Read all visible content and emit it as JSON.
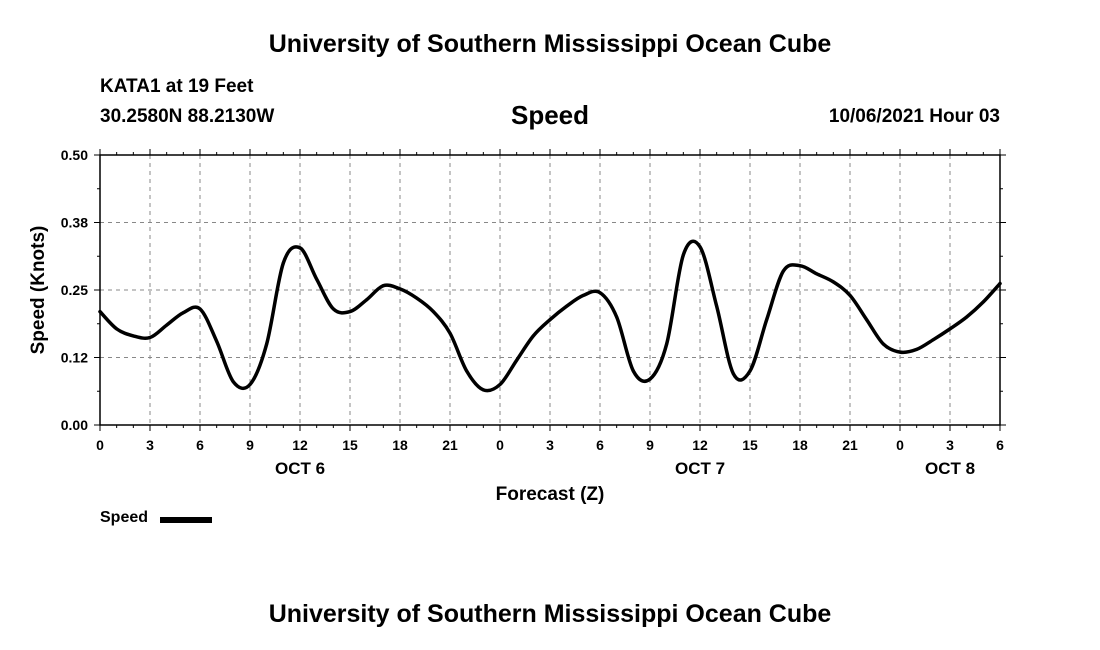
{
  "header": {
    "title": "University of Southern Mississippi Ocean Cube",
    "station": "KATA1 at 19 Feet",
    "coords": "30.2580N  88.2130W",
    "variable": "Speed",
    "datetime": "10/06/2021 Hour 03"
  },
  "footer": {
    "title": "University of Southern Mississippi Ocean Cube"
  },
  "legend": {
    "label": "Speed",
    "color": "#000000"
  },
  "chart_data": {
    "type": "line",
    "title": "Speed",
    "xlabel": "Forecast (Z)",
    "ylabel": "Speed (Knots)",
    "ylim": [
      0,
      0.5
    ],
    "xlim": [
      0,
      54
    ],
    "grid": true,
    "legend_position": "bottom-left",
    "y_ticks": [
      0.0,
      0.125,
      0.25,
      0.375,
      0.5
    ],
    "y_tick_labels": [
      "0.00",
      "0.12",
      "0.25",
      "0.38",
      "0.50"
    ],
    "x_ticks": [
      0,
      3,
      6,
      9,
      12,
      15,
      18,
      21,
      24,
      27,
      30,
      33,
      36,
      39,
      42,
      45,
      48,
      51,
      54
    ],
    "x_tick_labels": [
      "0",
      "3",
      "6",
      "9",
      "12",
      "15",
      "18",
      "21",
      "0",
      "3",
      "6",
      "9",
      "12",
      "15",
      "18",
      "21",
      "0",
      "3",
      "6"
    ],
    "day_labels": [
      {
        "x": 12,
        "label": "OCT 6"
      },
      {
        "x": 36,
        "label": "OCT 7"
      },
      {
        "x": 51,
        "label": "OCT 8"
      }
    ],
    "series": [
      {
        "name": "Speed",
        "color": "#000000",
        "x": [
          0,
          1,
          2,
          3,
          4,
          5,
          6,
          7,
          8,
          9,
          10,
          11,
          12,
          13,
          14,
          15,
          16,
          17,
          18,
          19,
          20,
          21,
          22,
          23,
          24,
          25,
          26,
          27,
          28,
          29,
          30,
          31,
          32,
          33,
          34,
          35,
          36,
          37,
          38,
          39,
          40,
          41,
          42,
          43,
          44,
          45,
          46,
          47,
          48,
          49,
          50,
          51,
          52,
          53,
          54
        ],
        "values": [
          0.21,
          0.178,
          0.165,
          0.162,
          0.185,
          0.208,
          0.215,
          0.155,
          0.08,
          0.075,
          0.15,
          0.3,
          0.328,
          0.27,
          0.215,
          0.21,
          0.232,
          0.258,
          0.252,
          0.235,
          0.21,
          0.17,
          0.1,
          0.065,
          0.075,
          0.12,
          0.165,
          0.195,
          0.22,
          0.24,
          0.245,
          0.2,
          0.1,
          0.085,
          0.15,
          0.315,
          0.33,
          0.22,
          0.095,
          0.1,
          0.195,
          0.285,
          0.295,
          0.28,
          0.265,
          0.24,
          0.195,
          0.15,
          0.135,
          0.14,
          0.158,
          0.178,
          0.2,
          0.228,
          0.262
        ]
      }
    ]
  }
}
